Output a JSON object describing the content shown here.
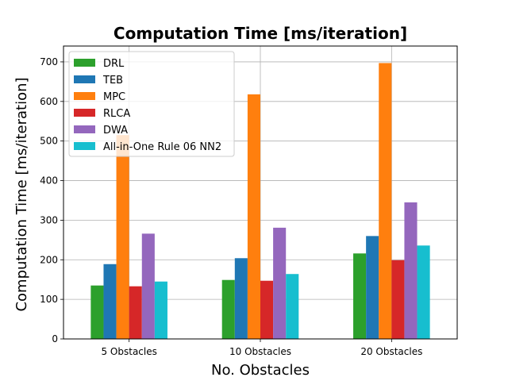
{
  "chart_data": {
    "type": "bar",
    "title": "Computation Time [ms/iteration]",
    "xlabel": "No. Obstacles",
    "ylabel": "Computation Time [ms/iteration]",
    "categories": [
      "5 Obstacles",
      "10 Obstacles",
      "20 Obstacles"
    ],
    "ylim": [
      0,
      740
    ],
    "yticks": [
      0,
      100,
      200,
      300,
      400,
      500,
      600,
      700
    ],
    "grid": true,
    "legend_position": "top-left",
    "series": [
      {
        "name": "DRL",
        "color": "#2ca02c",
        "values": [
          135,
          149,
          216
        ]
      },
      {
        "name": "TEB",
        "color": "#1f77b4",
        "values": [
          189,
          204,
          260
        ]
      },
      {
        "name": "MPC",
        "color": "#ff7f0e",
        "values": [
          515,
          618,
          697
        ]
      },
      {
        "name": "RLCA",
        "color": "#d62728",
        "values": [
          133,
          147,
          199
        ]
      },
      {
        "name": "DWA",
        "color": "#9467bd",
        "values": [
          266,
          281,
          345
        ]
      },
      {
        "name": "All-in-One Rule 06 NN2",
        "color": "#17becf",
        "values": [
          145,
          164,
          236
        ]
      }
    ]
  }
}
